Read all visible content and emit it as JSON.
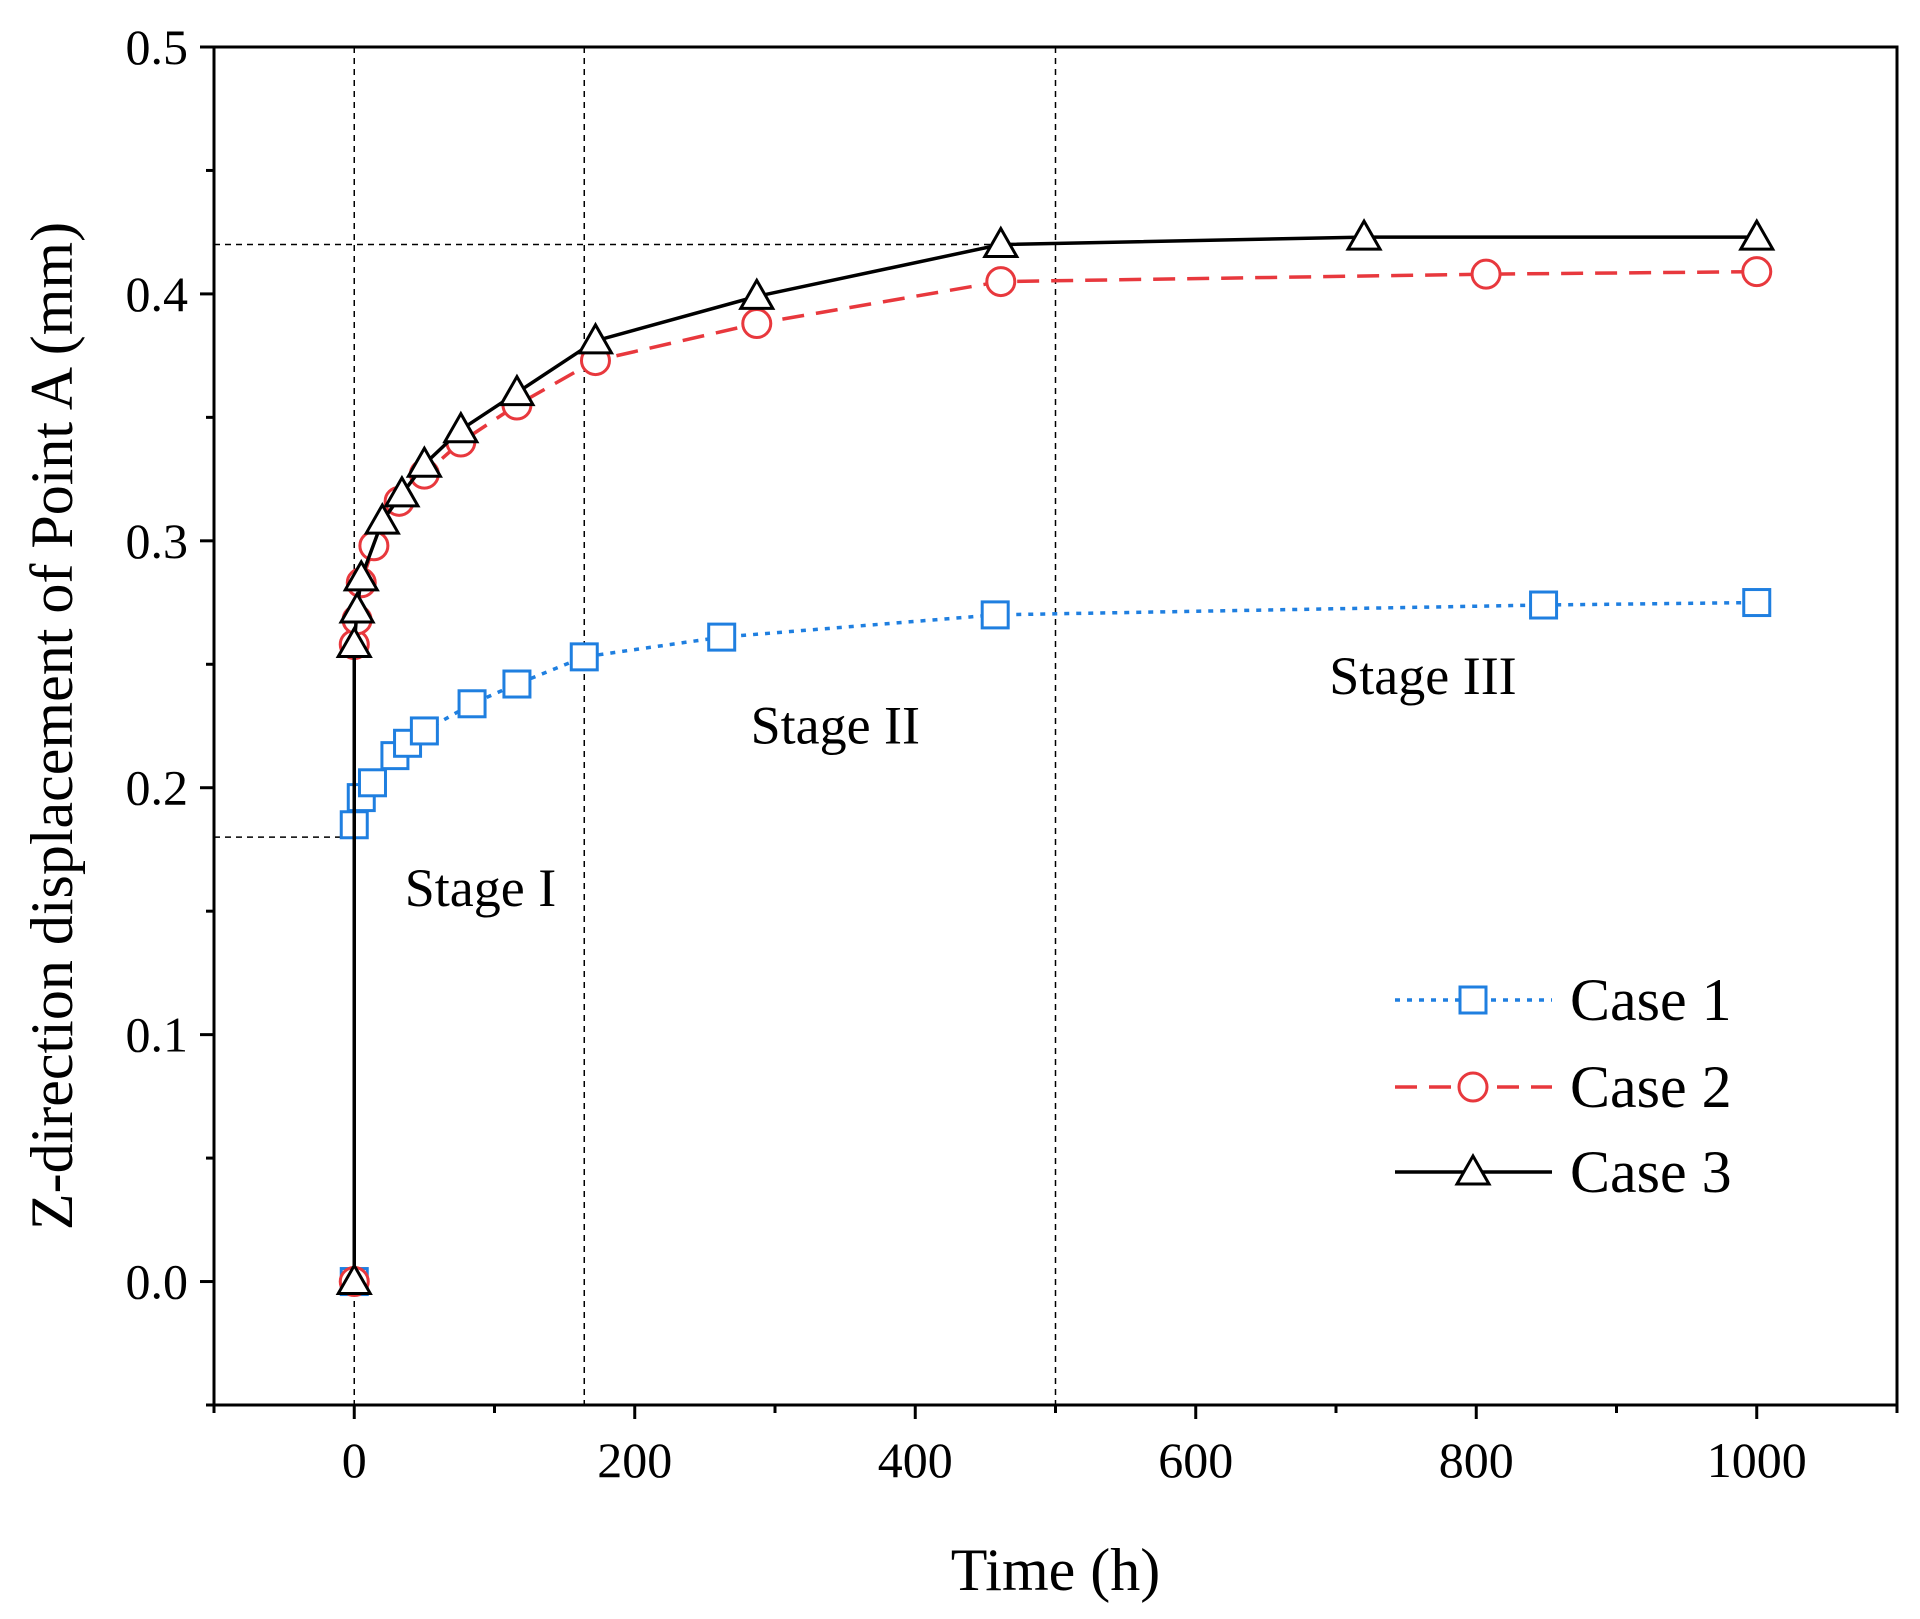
{
  "chart_data": {
    "type": "line",
    "xlabel": "Time (h)",
    "ylabel": "Z-direction displacement of Point A (mm)",
    "xlim": [
      -100,
      1100
    ],
    "ylim": [
      -0.05,
      0.5
    ],
    "xticks": [
      0,
      200,
      400,
      600,
      800,
      1000
    ],
    "yticks": [
      0.0,
      0.1,
      0.2,
      0.3,
      0.4,
      0.5
    ],
    "xtick_labels": [
      "0",
      "200",
      "400",
      "600",
      "800",
      "1000"
    ],
    "ytick_labels": [
      "0.0",
      "0.1",
      "0.2",
      "0.3",
      "0.4",
      "0.5"
    ],
    "grid": false,
    "legend_position": "bottom-right",
    "reference_lines": {
      "vertical_x": [
        0,
        164,
        500
      ],
      "horizontal": [
        {
          "y": 0.42,
          "x_end": 460
        },
        {
          "y": 0.18,
          "x_end": 0
        }
      ]
    },
    "annotations": [
      {
        "text": "Stage I",
        "x": 90,
        "y": 0.152
      },
      {
        "text": "Stage II",
        "x": 343,
        "y": 0.218
      },
      {
        "text": "Stage III",
        "x": 762,
        "y": 0.238
      }
    ],
    "series": [
      {
        "name": "Case 1",
        "color": "#1f7fe0",
        "line": "dotted",
        "marker": "square",
        "x": [
          0,
          0,
          5,
          13,
          29,
          38,
          50,
          84,
          116,
          164,
          262,
          457,
          848,
          1000
        ],
        "y": [
          0.0,
          0.185,
          0.196,
          0.202,
          0.213,
          0.218,
          0.223,
          0.234,
          0.242,
          0.253,
          0.261,
          0.27,
          0.274,
          0.275
        ]
      },
      {
        "name": "Case 2",
        "color": "#e8383d",
        "line": "dashed",
        "marker": "circle",
        "x": [
          0,
          0,
          2,
          5,
          14,
          32,
          50,
          76,
          116,
          172,
          287,
          461,
          807,
          1000
        ],
        "y": [
          0.0,
          0.258,
          0.268,
          0.283,
          0.298,
          0.316,
          0.327,
          0.34,
          0.355,
          0.373,
          0.388,
          0.405,
          0.408,
          0.409
        ]
      },
      {
        "name": "Case 3",
        "color": "#000000",
        "line": "solid",
        "marker": "triangle",
        "x": [
          0,
          0,
          2,
          5,
          20,
          34,
          50,
          76,
          116,
          172,
          287,
          461,
          720,
          1000
        ],
        "y": [
          0.0,
          0.258,
          0.272,
          0.285,
          0.308,
          0.319,
          0.331,
          0.345,
          0.36,
          0.381,
          0.399,
          0.42,
          0.423,
          0.423
        ]
      }
    ]
  }
}
